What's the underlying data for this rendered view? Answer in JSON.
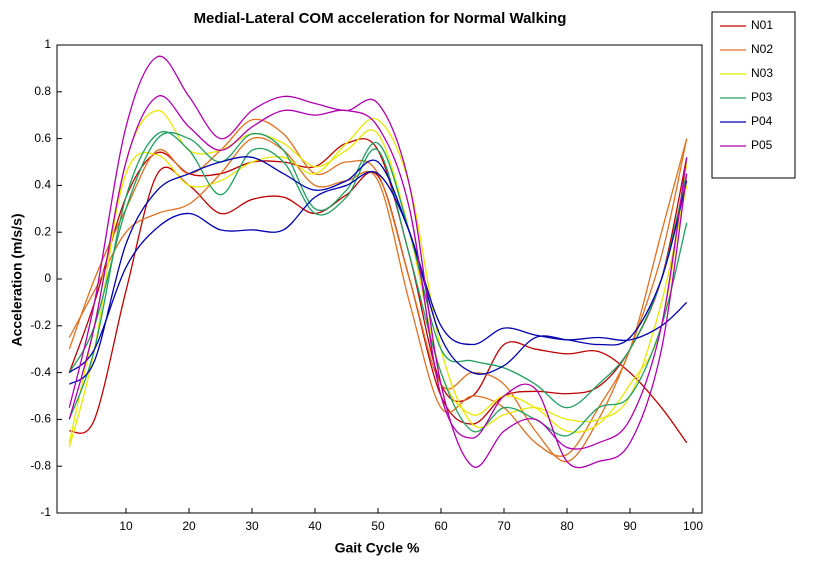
{
  "chart_data": {
    "type": "line",
    "title": "Medial-Lateral COM acceleration for Normal Walking",
    "x_label": "Gait Cycle %",
    "y_label": "Acceleration (m/s/s)",
    "x": [
      1,
      5,
      10,
      15,
      20,
      25,
      30,
      35,
      40,
      45,
      50,
      55,
      60,
      65,
      70,
      75,
      80,
      85,
      90,
      95,
      99
    ],
    "series": [
      {
        "name": "N01",
        "color": "#c00000",
        "lines": [
          {
            "values": [
              -0.65,
              -0.6,
              -0.05,
              0.45,
              0.4,
              0.28,
              0.34,
              0.35,
              0.28,
              0.36,
              0.44,
              0.0,
              -0.5,
              -0.62,
              -0.5,
              -0.48,
              -0.49,
              -0.46,
              -0.3,
              0.0,
              0.52
            ]
          },
          {
            "values": [
              -0.4,
              -0.1,
              0.35,
              0.54,
              0.45,
              0.45,
              0.5,
              0.5,
              0.48,
              0.58,
              0.55,
              0.1,
              -0.45,
              -0.5,
              -0.28,
              -0.3,
              -0.32,
              -0.31,
              -0.4,
              -0.55,
              -0.7
            ]
          }
        ]
      },
      {
        "name": "N02",
        "color": "#e07020",
        "lines": [
          {
            "values": [
              -0.3,
              0.0,
              0.3,
              0.55,
              0.45,
              0.55,
              0.68,
              0.62,
              0.45,
              0.5,
              0.45,
              0.0,
              -0.45,
              -0.4,
              -0.45,
              -0.65,
              -0.78,
              -0.6,
              -0.3,
              0.1,
              0.6
            ]
          },
          {
            "values": [
              -0.25,
              -0.05,
              0.2,
              0.28,
              0.32,
              0.45,
              0.6,
              0.55,
              0.4,
              0.42,
              0.42,
              -0.1,
              -0.55,
              -0.5,
              -0.55,
              -0.7,
              -0.75,
              -0.55,
              -0.3,
              0.2,
              0.6
            ]
          }
        ]
      },
      {
        "name": "N03",
        "color": "#e8e800",
        "lines": [
          {
            "values": [
              -0.72,
              -0.3,
              0.5,
              0.72,
              0.55,
              0.55,
              0.62,
              0.58,
              0.48,
              0.55,
              0.62,
              0.2,
              -0.4,
              -0.58,
              -0.5,
              -0.55,
              -0.65,
              -0.62,
              -0.45,
              -0.2,
              0.5
            ]
          },
          {
            "values": [
              -0.7,
              -0.2,
              0.45,
              0.53,
              0.4,
              0.42,
              0.5,
              0.52,
              0.45,
              0.58,
              0.68,
              0.4,
              -0.3,
              -0.62,
              -0.58,
              -0.55,
              -0.6,
              -0.6,
              -0.5,
              -0.1,
              0.4
            ]
          }
        ]
      },
      {
        "name": "P03",
        "color": "#20a060",
        "lines": [
          {
            "values": [
              -0.4,
              -0.2,
              0.3,
              0.6,
              0.6,
              0.5,
              0.62,
              0.55,
              0.3,
              0.38,
              0.58,
              0.2,
              -0.3,
              -0.35,
              -0.38,
              -0.45,
              -0.55,
              -0.45,
              -0.3,
              0.0,
              0.45
            ]
          },
          {
            "values": [
              -0.6,
              -0.3,
              0.35,
              0.62,
              0.55,
              0.36,
              0.55,
              0.5,
              0.28,
              0.35,
              0.55,
              0.1,
              -0.4,
              -0.65,
              -0.55,
              -0.6,
              -0.67,
              -0.55,
              -0.5,
              -0.2,
              0.24
            ]
          }
        ]
      },
      {
        "name": "P04",
        "color": "#0000b0",
        "lines": [
          {
            "values": [
              -0.45,
              -0.35,
              0.15,
              0.38,
              0.45,
              0.5,
              0.52,
              0.45,
              0.38,
              0.42,
              0.5,
              0.2,
              -0.2,
              -0.28,
              -0.21,
              -0.24,
              -0.26,
              -0.25,
              -0.26,
              -0.2,
              -0.1
            ]
          },
          {
            "values": [
              -0.4,
              -0.3,
              0.05,
              0.22,
              0.28,
              0.21,
              0.21,
              0.21,
              0.35,
              0.4,
              0.45,
              0.2,
              -0.25,
              -0.4,
              -0.37,
              -0.25,
              -0.26,
              -0.28,
              -0.25,
              0.0,
              0.42
            ]
          }
        ]
      },
      {
        "name": "P05",
        "color": "#b000b0",
        "lines": [
          {
            "values": [
              -0.55,
              -0.1,
              0.65,
              0.95,
              0.78,
              0.6,
              0.72,
              0.78,
              0.75,
              0.72,
              0.75,
              0.4,
              -0.45,
              -0.8,
              -0.65,
              -0.6,
              -0.72,
              -0.7,
              -0.6,
              -0.2,
              0.52
            ]
          },
          {
            "values": [
              -0.6,
              -0.2,
              0.5,
              0.78,
              0.65,
              0.55,
              0.65,
              0.72,
              0.7,
              0.72,
              0.65,
              0.3,
              -0.5,
              -0.68,
              -0.5,
              -0.47,
              -0.78,
              -0.78,
              -0.7,
              -0.3,
              0.45
            ]
          }
        ]
      }
    ],
    "xlim": [
      0,
      100
    ],
    "xticks": [
      10,
      20,
      30,
      40,
      50,
      60,
      70,
      80,
      90,
      100
    ],
    "ylim": [
      -1,
      1
    ],
    "yticks": [
      -1,
      -0.8,
      -0.6,
      -0.4,
      -0.2,
      0,
      0.2,
      0.4,
      0.6,
      0.8,
      1
    ],
    "grid": false,
    "legend": "outside-top-right"
  }
}
